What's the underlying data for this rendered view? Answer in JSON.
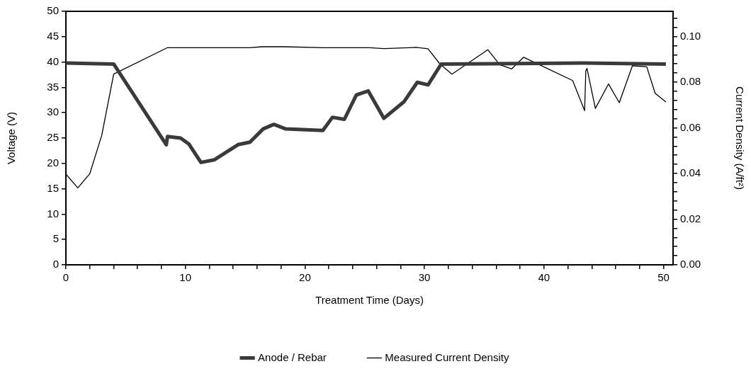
{
  "chart_data": {
    "type": "line",
    "xlabel": "Treatment Time (Days)",
    "ylabel": "Voltage (V)",
    "y2label": "Current Density (A/ft²)",
    "xlim": [
      0,
      50.8
    ],
    "xticks": [
      0,
      {
        "value": 2,
        "label": null
      },
      {
        "value": 4,
        "label": null
      },
      {
        "value": 6,
        "label": null
      },
      {
        "value": 8,
        "label": null
      },
      10,
      {
        "value": 12,
        "label": null
      },
      {
        "value": 14,
        "label": null
      },
      {
        "value": 16,
        "label": null
      },
      {
        "value": 18,
        "label": null
      },
      20,
      {
        "value": 22,
        "label": null
      },
      {
        "value": 24,
        "label": null
      },
      {
        "value": 26,
        "label": null
      },
      {
        "value": 28,
        "label": null
      },
      30,
      {
        "value": 32,
        "label": null
      },
      {
        "value": 34,
        "label": null
      },
      {
        "value": 36,
        "label": null
      },
      {
        "value": 38,
        "label": null
      },
      40,
      {
        "value": 42,
        "label": null
      },
      {
        "value": 44,
        "label": null
      },
      {
        "value": 46,
        "label": null
      },
      {
        "value": 48,
        "label": null
      },
      50
    ],
    "ylim": [
      0,
      50
    ],
    "yticks": [
      0,
      5,
      10,
      15,
      20,
      25,
      30,
      35,
      40,
      45,
      50
    ],
    "y2lim": [
      0,
      0.111
    ],
    "y2ticks": [
      {
        "value": 0,
        "label": "0.00"
      },
      {
        "value": 0.004,
        "label": null
      },
      {
        "value": 0.008,
        "label": null
      },
      {
        "value": 0.012,
        "label": null
      },
      {
        "value": 0.016,
        "label": null
      },
      {
        "value": 0.02,
        "label": "0.02"
      },
      {
        "value": 0.024,
        "label": null
      },
      {
        "value": 0.028,
        "label": null
      },
      {
        "value": 0.032,
        "label": null
      },
      {
        "value": 0.036,
        "label": null
      },
      {
        "value": 0.04,
        "label": "0.04"
      },
      {
        "value": 0.044,
        "label": null
      },
      {
        "value": 0.048,
        "label": null
      },
      {
        "value": 0.052,
        "label": null
      },
      {
        "value": 0.056,
        "label": null
      },
      {
        "value": 0.06,
        "label": "0.06"
      },
      {
        "value": 0.064,
        "label": null
      },
      {
        "value": 0.068,
        "label": null
      },
      {
        "value": 0.072,
        "label": null
      },
      {
        "value": 0.076,
        "label": null
      },
      {
        "value": 0.08,
        "label": "0.08"
      },
      {
        "value": 0.084,
        "label": null
      },
      {
        "value": 0.088,
        "label": null
      },
      {
        "value": 0.092,
        "label": null
      },
      {
        "value": 0.096,
        "label": null
      },
      {
        "value": 0.1,
        "label": "0.10"
      },
      {
        "value": 0.104,
        "label": null
      },
      {
        "value": 0.108,
        "label": null
      }
    ],
    "grid": false,
    "legend": "bottom",
    "marker": "none",
    "line_style": "solid",
    "series": [
      {
        "name": "Anode / Rebar",
        "color": "#3a3a3a",
        "x": [
          0,
          4.0,
          8.4,
          8.5,
          9.6,
          10.3,
          11.3,
          12.4,
          14.4,
          15.4,
          16.5,
          17.4,
          18.4,
          21.5,
          22.3,
          23.3,
          24.3,
          25.3,
          26.6,
          28.3,
          29.4,
          30.3,
          31.4,
          43.3,
          50.2
        ],
        "values": [
          39.8,
          39.6,
          23.7,
          25.3,
          25.0,
          23.8,
          20.2,
          20.7,
          23.7,
          24.2,
          26.8,
          27.7,
          26.8,
          26.5,
          29.1,
          28.7,
          33.5,
          34.3,
          28.9,
          32.2,
          36.0,
          35.5,
          39.6,
          39.8,
          39.6
        ]
      },
      {
        "name": "Measured Current Density",
        "color": "#000000",
        "axis": "y2",
        "x": [
          0,
          1.0,
          2.0,
          3.0,
          4.0,
          8.5,
          15.4,
          16.4,
          18.3,
          21.5,
          25.4,
          26.6,
          28.7,
          29.3,
          30.3,
          31.3,
          32.3,
          35.3,
          36.3,
          37.3,
          38.3,
          42.4,
          43.4,
          43.5,
          43.6,
          44.3,
          45.4,
          46.3,
          47.4,
          48.6,
          49.3,
          50.2
        ],
        "values": [
          0.0397,
          0.0337,
          0.0399,
          0.0567,
          0.0835,
          0.0951,
          0.0951,
          0.0955,
          0.0955,
          0.0951,
          0.0951,
          0.0947,
          0.0951,
          0.0952,
          0.0946,
          0.0879,
          0.0835,
          0.0942,
          0.0876,
          0.0858,
          0.0909,
          0.0807,
          0.0675,
          0.0849,
          0.086,
          0.0685,
          0.0792,
          0.071,
          0.0872,
          0.0867,
          0.0751,
          0.0713
        ]
      }
    ]
  }
}
